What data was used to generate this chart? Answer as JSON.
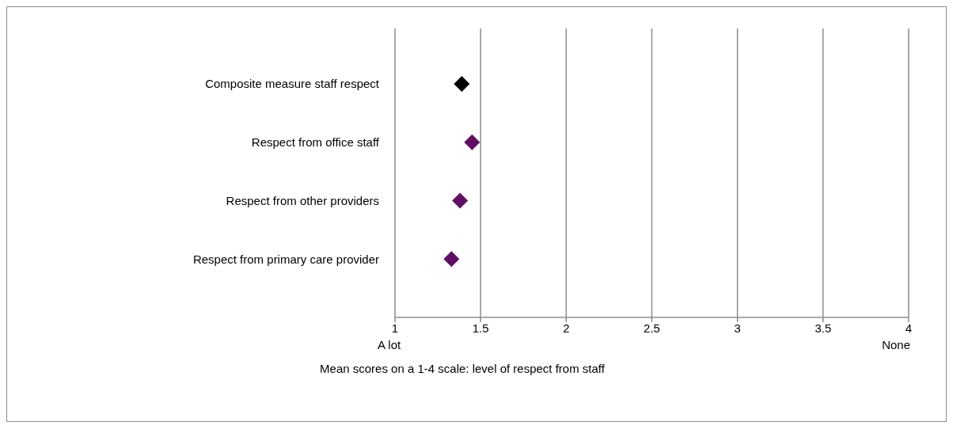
{
  "chart_data": {
    "type": "scatter",
    "xlabel": "Mean scores on a 1-4 scale: level of respect from staff",
    "categories": [
      "Composite measure staff respect",
      "Respect from office staff",
      "Respect from other providers",
      "Respect from primary care provider"
    ],
    "values": [
      1.39,
      1.45,
      1.38,
      1.33
    ],
    "colors": [
      "#000000",
      "#5f0f63",
      "#5f0f63",
      "#5f0f63"
    ],
    "xlim": [
      1,
      4
    ],
    "xticks": [
      1,
      1.5,
      2,
      2.5,
      3,
      3.5,
      4
    ],
    "annotations": [
      "A lot",
      "None"
    ],
    "grid": "x",
    "marker": "diamond",
    "orientation": "horizontal"
  }
}
